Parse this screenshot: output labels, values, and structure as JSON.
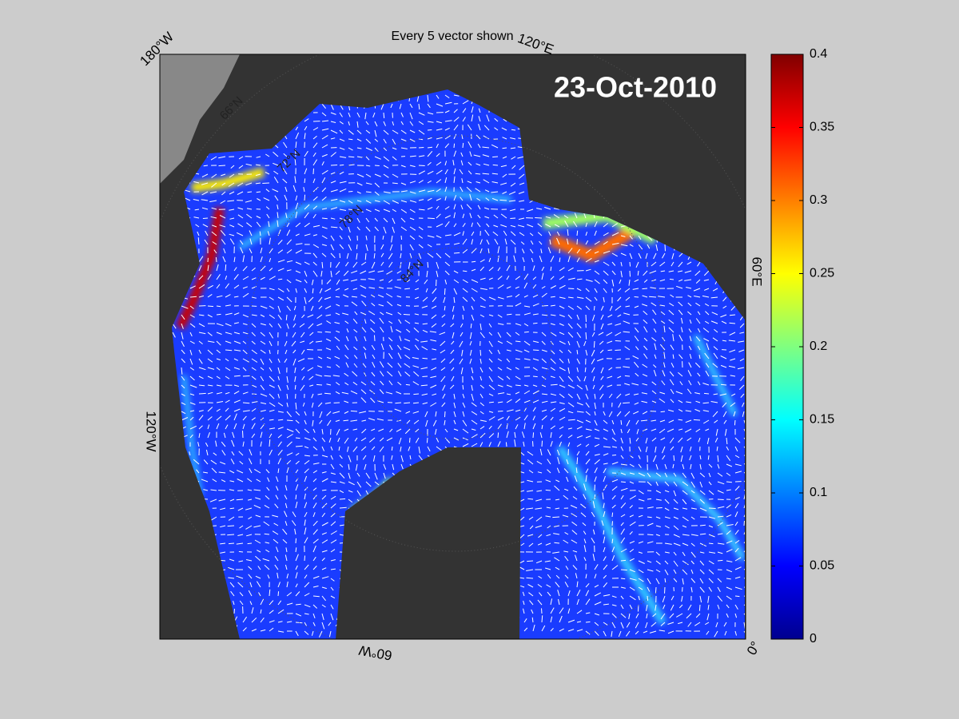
{
  "title": "Every 5 vector shown",
  "date": "23-Oct-2010",
  "longitude_labels": [
    "180°W",
    "120°E",
    "60°E",
    "0°",
    "60°W",
    "120°W"
  ],
  "latitude_labels": [
    "66°N",
    "72°N",
    "78°N",
    "84°N"
  ],
  "colorbar": {
    "lim": [
      0,
      0.4
    ],
    "ticks": [
      0,
      0.05,
      0.1,
      0.15,
      0.2,
      0.25,
      0.3,
      0.35,
      0.4
    ]
  }
}
